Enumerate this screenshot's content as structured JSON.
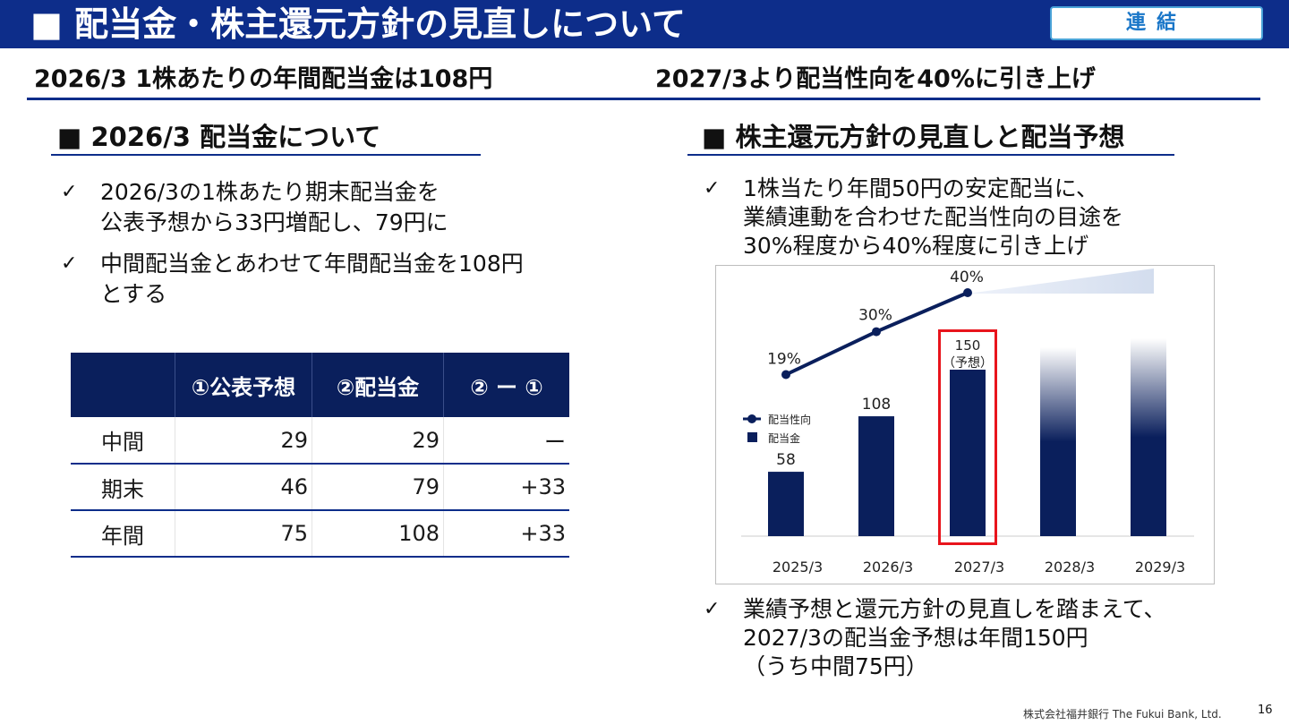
{
  "header": {
    "title": "■ 配当金・株主還元方針の見直しについて",
    "badge": "連結"
  },
  "headlines": {
    "left": "2026/3 1株あたりの年間配当金は108円",
    "right": "2027/3より配当性向を40%に引き上げ"
  },
  "left_section": {
    "title": "■ 2026/3 配当金について",
    "bullets": [
      {
        "check": "✓",
        "lines": [
          "2026/3の1株あたり期末配当金を",
          "公表予想から33円増配し、79円に"
        ]
      },
      {
        "check": "✓",
        "lines": [
          "中間配当金とあわせて年間配当金を108円",
          "とする"
        ]
      }
    ],
    "table": {
      "headers": [
        "",
        "①公表予想",
        "②配当金",
        "② ー ①"
      ],
      "rows": [
        [
          "中間",
          "29",
          "29",
          "ー"
        ],
        [
          "期末",
          "46",
          "79",
          "+33"
        ],
        [
          "年間",
          "75",
          "108",
          "+33"
        ]
      ]
    }
  },
  "right_section": {
    "title": "■ 株主還元方針の見直しと配当予想",
    "bullet1": {
      "check": "✓",
      "lines": [
        "1株当たり年間50円の安定配当に、",
        "業績連動を合わせた配当性向の目途を",
        "30%程度から40%程度に引き上げ"
      ]
    },
    "bullet2": {
      "check": "✓",
      "lines": [
        "業績予想と還元方針の見直しを踏まえて、",
        "2027/3の配当金予想は年間150円",
        "（うち中間75円）"
      ]
    }
  },
  "chart_data": {
    "type": "bar",
    "categories": [
      "2025/3",
      "2026/3",
      "2027/3",
      "2028/3",
      "2029/3"
    ],
    "series": [
      {
        "name": "配当金",
        "type": "bar",
        "values": [
          58,
          108,
          150,
          null,
          null
        ],
        "labels": [
          "58",
          "108",
          "150",
          "",
          ""
        ]
      },
      {
        "name": "配当性向",
        "type": "line",
        "values": [
          19,
          30,
          40,
          null,
          null
        ],
        "labels": [
          "19%",
          "30%",
          "40%",
          "",
          ""
        ]
      }
    ],
    "forecast_note": "（予想）",
    "legend": [
      "配当性向",
      "配当金"
    ],
    "legend_position": "left",
    "highlight_category": "2027/3",
    "colors": {
      "bar": "#0a1f5c",
      "line": "#0a1f5c",
      "highlight": "#e8141c",
      "fade": "#dfe6f3"
    }
  },
  "footer": {
    "company": "株式会社福井銀行 The Fukui Bank, Ltd.",
    "page": "16"
  }
}
